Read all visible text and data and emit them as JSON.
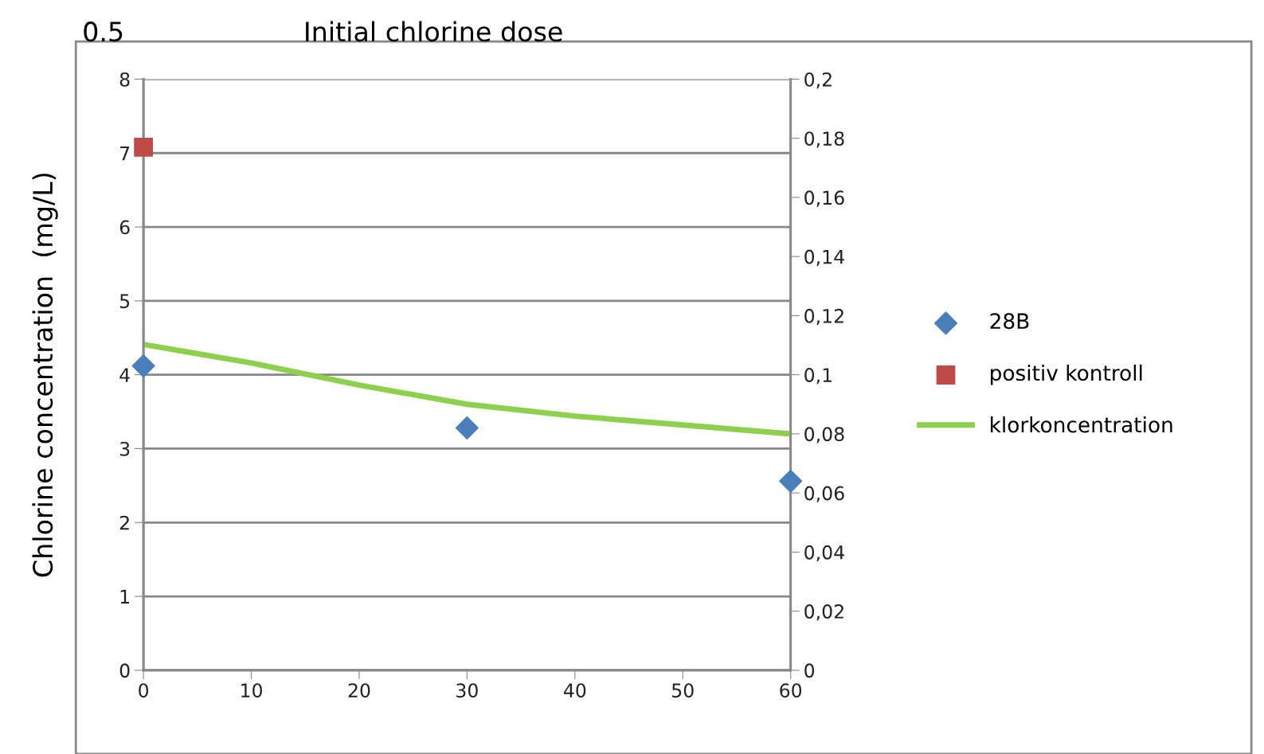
{
  "chart_data": {
    "type": "scatter",
    "ylabel": "Chlorine concentration  (mg/L)",
    "annotations": [
      "0.5",
      "Initial chlorine dose"
    ],
    "xlim": [
      0,
      60
    ],
    "xticks": [
      0,
      10,
      20,
      30,
      40,
      50,
      60
    ],
    "ylim": [
      0,
      8
    ],
    "yticks": [
      0,
      1,
      2,
      3,
      4,
      5,
      6,
      7,
      8
    ],
    "y2lim": [
      0,
      0.2
    ],
    "y2ticks": [
      {
        "value": 0,
        "label": "0"
      },
      {
        "value": 0.02,
        "label": "0,02"
      },
      {
        "value": 0.04,
        "label": "0,04"
      },
      {
        "value": 0.06,
        "label": "0,06"
      },
      {
        "value": 0.08,
        "label": "0,08"
      },
      {
        "value": 0.1,
        "label": "0,1"
      },
      {
        "value": 0.12,
        "label": "0,12"
      },
      {
        "value": 0.14,
        "label": "0,14"
      },
      {
        "value": 0.16,
        "label": "0,16"
      },
      {
        "value": 0.18,
        "label": "0,18"
      },
      {
        "value": 0.2,
        "label": "0,2"
      }
    ],
    "grid": "y",
    "legend": "right",
    "series": [
      {
        "name": "28B",
        "axis": "y2",
        "marker": "diamond",
        "color": "#4a7ebb",
        "x": [
          0,
          30,
          60
        ],
        "values": [
          0.103,
          0.082,
          0.064
        ]
      },
      {
        "name": "positiv kontroll",
        "axis": "y2",
        "marker": "square",
        "color": "#be4b48",
        "x": [
          0
        ],
        "values": [
          0.177
        ]
      },
      {
        "name": "klorkoncentration",
        "type": "line",
        "marker": "none",
        "line_style": "solid",
        "color": "#8cd04d",
        "x": [
          0,
          10,
          20,
          30,
          40,
          50,
          60
        ],
        "values": [
          4.41,
          4.16,
          3.86,
          3.6,
          3.44,
          3.32,
          3.2
        ]
      }
    ]
  }
}
